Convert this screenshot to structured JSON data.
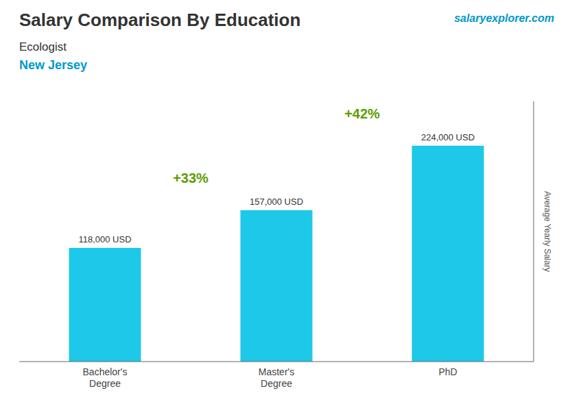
{
  "chart_data": {
    "type": "bar",
    "title": "Salary Comparison By Education",
    "subtitle": "Ecologist",
    "annotations": [
      "New Jersey",
      "salaryexplorer.com",
      "+33%",
      "+42%"
    ],
    "categories": [
      "Bachelor's\nDegree",
      "Master's\nDegree",
      "PhD"
    ],
    "values": [
      118000,
      157000,
      224000
    ],
    "value_labels": [
      "118,000 USD",
      "157,000 USD",
      "224,000 USD"
    ],
    "data_labels": true,
    "color": "#1EC8E8",
    "ylabel": "Average Yearly Salary",
    "ylim": [
      0,
      270000
    ],
    "tick_labels": "x",
    "grid": false
  }
}
